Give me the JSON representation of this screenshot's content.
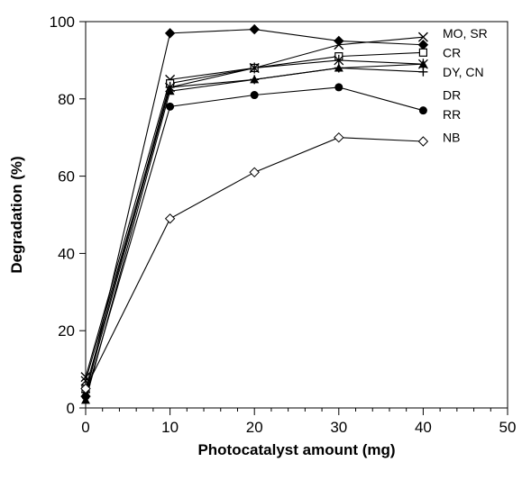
{
  "chart_data": {
    "type": "line",
    "title": "",
    "xlabel": "Photocatalyst amount (mg)",
    "ylabel": "Degradation (%)",
    "xlim": [
      0,
      50
    ],
    "ylim": [
      0,
      100
    ],
    "xticks": [
      0,
      10,
      20,
      30,
      40,
      50
    ],
    "yticks": [
      0,
      20,
      40,
      60,
      80,
      100
    ],
    "x_minor_step": 2,
    "grid": false,
    "x": [
      0,
      10,
      20,
      30,
      40
    ],
    "series": [
      {
        "name": "MO",
        "marker": "diamond-filled",
        "values": [
          3,
          97,
          98,
          95,
          94
        ]
      },
      {
        "name": "SR",
        "marker": "x",
        "values": [
          8,
          85,
          88,
          94,
          96
        ]
      },
      {
        "name": "CR",
        "marker": "square-open",
        "values": [
          5,
          84,
          88,
          91,
          92
        ]
      },
      {
        "name": "DY",
        "marker": "asterisk",
        "values": [
          7,
          83,
          88,
          90,
          89
        ]
      },
      {
        "name": "CN",
        "marker": "plus",
        "values": [
          4,
          83,
          85,
          88,
          87
        ]
      },
      {
        "name": "DR",
        "marker": "circle-filled",
        "values": [
          3,
          78,
          81,
          83,
          77
        ]
      },
      {
        "name": "RR",
        "marker": "triangle-filled",
        "values": [
          2,
          82,
          85,
          88,
          89
        ]
      },
      {
        "name": "NB",
        "marker": "diamond-open",
        "values": [
          5,
          49,
          61,
          70,
          69
        ]
      }
    ],
    "labels": [
      {
        "text": "MO, SR",
        "y": 97
      },
      {
        "text": "CR",
        "y": 92
      },
      {
        "text": "DY, CN",
        "y": 87
      },
      {
        "text": "DR",
        "y": 81
      },
      {
        "text": "RR",
        "y": 76
      },
      {
        "text": "NB",
        "y": 70
      }
    ],
    "colors": {
      "line": "#000000",
      "marker": "#000000",
      "background": "#ffffff"
    }
  }
}
